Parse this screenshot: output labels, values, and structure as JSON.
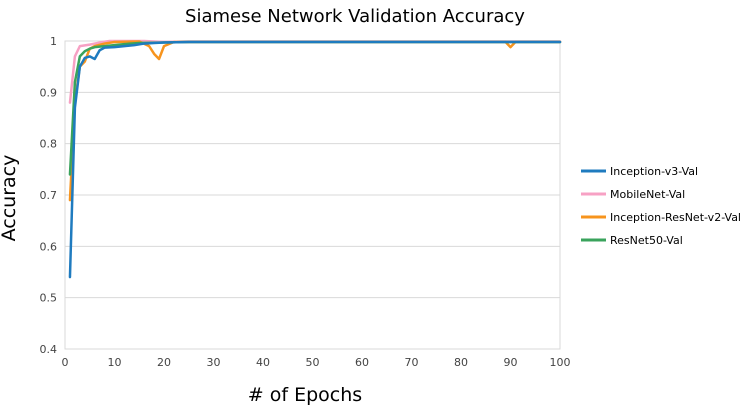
{
  "chart_data": {
    "type": "line",
    "title": "Siamese Network Validation Accuracy",
    "xlabel": "# of Epochs",
    "ylabel": "Accuracy",
    "xlim": [
      0,
      100
    ],
    "ylim": [
      0.4,
      1.0
    ],
    "x_ticks": [
      0,
      10,
      20,
      30,
      40,
      50,
      60,
      70,
      80,
      90,
      100
    ],
    "y_ticks": [
      0.4,
      0.5,
      0.6,
      0.7,
      0.8,
      0.9,
      1.0
    ],
    "y_tick_labels": [
      "0.4",
      "0.5",
      "0.6",
      "0.7",
      "0.8",
      "0.9",
      "1"
    ],
    "grid": "horizontal",
    "legend_position": "right",
    "series": [
      {
        "name": "MobileNet-Val",
        "color": "#f7a1c4",
        "points": [
          [
            1,
            0.88
          ],
          [
            2,
            0.97
          ],
          [
            3,
            0.99
          ],
          [
            5,
            0.993
          ],
          [
            7,
            0.997
          ],
          [
            9,
            1.0
          ],
          [
            12,
            1.0
          ],
          [
            16,
            1.0
          ],
          [
            20,
            0.998
          ],
          [
            25,
            0.999
          ],
          [
            30,
            0.999
          ],
          [
            40,
            0.999
          ],
          [
            50,
            0.999
          ],
          [
            60,
            0.999
          ],
          [
            70,
            0.999
          ],
          [
            80,
            0.999
          ],
          [
            90,
            0.999
          ],
          [
            100,
            0.999
          ]
        ]
      },
      {
        "name": "Inception-ResNet-v2-Val",
        "color": "#f7941d",
        "points": [
          [
            1,
            0.69
          ],
          [
            2,
            0.88
          ],
          [
            3,
            0.95
          ],
          [
            4,
            0.96
          ],
          [
            5,
            0.985
          ],
          [
            6,
            0.99
          ],
          [
            8,
            0.995
          ],
          [
            10,
            0.998
          ],
          [
            15,
            0.999
          ],
          [
            17,
            0.99
          ],
          [
            18,
            0.975
          ],
          [
            19,
            0.965
          ],
          [
            20,
            0.99
          ],
          [
            22,
            0.998
          ],
          [
            25,
            0.998
          ],
          [
            30,
            0.998
          ],
          [
            40,
            0.998
          ],
          [
            50,
            0.998
          ],
          [
            60,
            0.998
          ],
          [
            70,
            0.998
          ],
          [
            80,
            0.998
          ],
          [
            89,
            0.998
          ],
          [
            90,
            0.988
          ],
          [
            91,
            0.998
          ],
          [
            95,
            0.998
          ],
          [
            100,
            0.998
          ]
        ]
      },
      {
        "name": "ResNet50-Val",
        "color": "#3aa35c",
        "points": [
          [
            1,
            0.74
          ],
          [
            2,
            0.92
          ],
          [
            3,
            0.97
          ],
          [
            4,
            0.98
          ],
          [
            5,
            0.985
          ],
          [
            6,
            0.988
          ],
          [
            8,
            0.99
          ],
          [
            10,
            0.992
          ],
          [
            12,
            0.994
          ],
          [
            15,
            0.996
          ],
          [
            20,
            0.997
          ],
          [
            25,
            0.998
          ],
          [
            30,
            0.998
          ],
          [
            40,
            0.998
          ],
          [
            50,
            0.998
          ],
          [
            60,
            0.998
          ],
          [
            70,
            0.998
          ],
          [
            80,
            0.998
          ],
          [
            90,
            0.998
          ],
          [
            100,
            0.998
          ]
        ]
      },
      {
        "name": "Inception-v3-Val",
        "color": "#1f7bbf",
        "points": [
          [
            1,
            0.54
          ],
          [
            2,
            0.87
          ],
          [
            3,
            0.95
          ],
          [
            4,
            0.967
          ],
          [
            5,
            0.97
          ],
          [
            6,
            0.965
          ],
          [
            7,
            0.982
          ],
          [
            8,
            0.987
          ],
          [
            10,
            0.988
          ],
          [
            12,
            0.99
          ],
          [
            14,
            0.992
          ],
          [
            16,
            0.995
          ],
          [
            18,
            0.996
          ],
          [
            20,
            0.997
          ],
          [
            25,
            0.998
          ],
          [
            30,
            0.998
          ],
          [
            40,
            0.998
          ],
          [
            50,
            0.998
          ],
          [
            60,
            0.998
          ],
          [
            70,
            0.998
          ],
          [
            80,
            0.998
          ],
          [
            90,
            0.998
          ],
          [
            100,
            0.998
          ]
        ]
      }
    ],
    "legend_order": [
      "Inception-v3-Val",
      "MobileNet-Val",
      "Inception-ResNet-v2-Val",
      "ResNet50-Val"
    ]
  }
}
